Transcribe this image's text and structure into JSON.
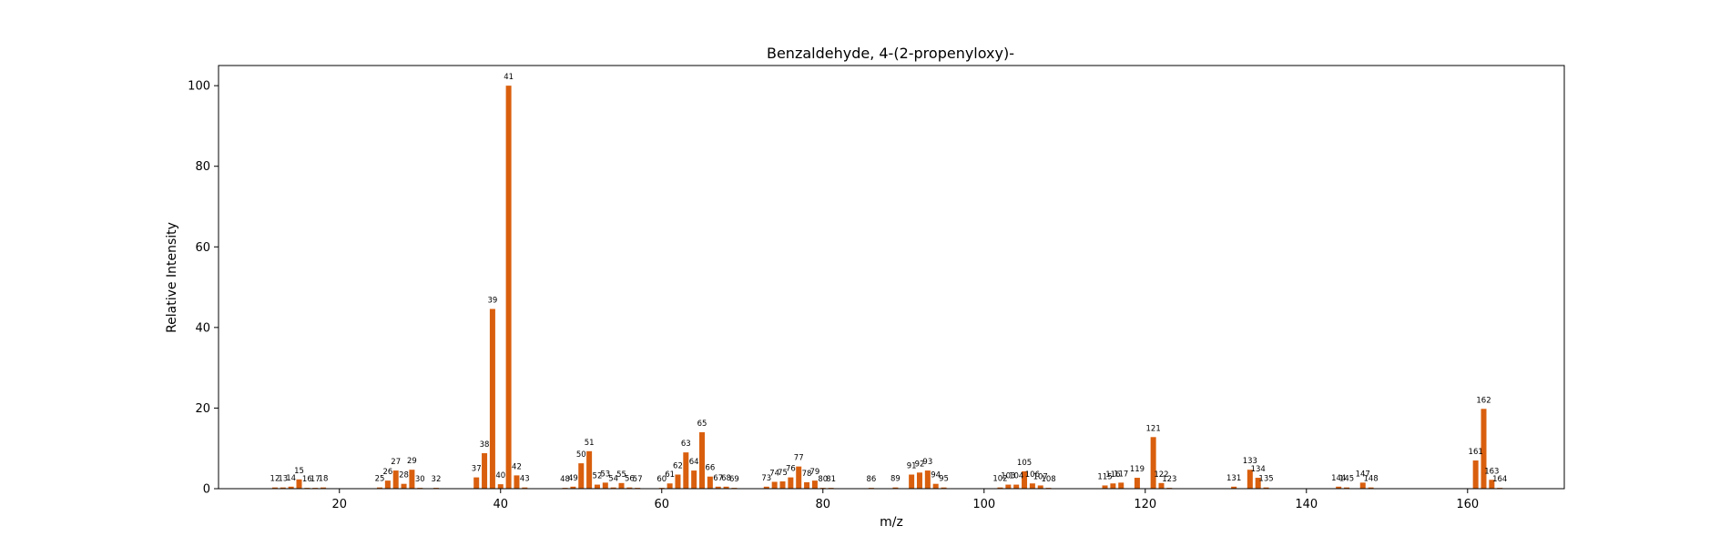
{
  "chart_data": {
    "type": "bar",
    "title": "Benzaldehyde, 4-(2-propenyloxy)-",
    "xlabel": "m/z",
    "ylabel": "Relative Intensity",
    "xlim": [
      5,
      172
    ],
    "ylim": [
      0,
      105
    ],
    "x_ticks": [
      20,
      40,
      60,
      80,
      100,
      120,
      140,
      160
    ],
    "y_ticks": [
      0,
      20,
      40,
      60,
      80,
      100
    ],
    "grid": false,
    "color": "#d95f0e",
    "peaks": [
      {
        "mz": 12,
        "intensity": 0.3
      },
      {
        "mz": 13,
        "intensity": 0.3
      },
      {
        "mz": 14,
        "intensity": 0.5
      },
      {
        "mz": 15,
        "intensity": 2.3
      },
      {
        "mz": 16,
        "intensity": 0.2
      },
      {
        "mz": 17,
        "intensity": 0.2
      },
      {
        "mz": 18,
        "intensity": 0.3
      },
      {
        "mz": 25,
        "intensity": 0.3
      },
      {
        "mz": 26,
        "intensity": 2.0
      },
      {
        "mz": 27,
        "intensity": 4.5
      },
      {
        "mz": 28,
        "intensity": 1.2
      },
      {
        "mz": 29,
        "intensity": 4.7
      },
      {
        "mz": 30,
        "intensity": 0.2
      },
      {
        "mz": 32,
        "intensity": 0.2
      },
      {
        "mz": 37,
        "intensity": 2.8
      },
      {
        "mz": 38,
        "intensity": 8.8
      },
      {
        "mz": 39,
        "intensity": 44.6
      },
      {
        "mz": 40,
        "intensity": 1.1
      },
      {
        "mz": 41,
        "intensity": 100
      },
      {
        "mz": 42,
        "intensity": 3.3
      },
      {
        "mz": 43,
        "intensity": 0.3
      },
      {
        "mz": 48,
        "intensity": 0.2
      },
      {
        "mz": 49,
        "intensity": 0.5
      },
      {
        "mz": 50,
        "intensity": 6.3
      },
      {
        "mz": 51,
        "intensity": 9.3
      },
      {
        "mz": 52,
        "intensity": 1.0
      },
      {
        "mz": 53,
        "intensity": 1.5
      },
      {
        "mz": 54,
        "intensity": 0.3
      },
      {
        "mz": 55,
        "intensity": 1.4
      },
      {
        "mz": 56,
        "intensity": 0.3
      },
      {
        "mz": 57,
        "intensity": 0.2
      },
      {
        "mz": 60,
        "intensity": 0.2
      },
      {
        "mz": 61,
        "intensity": 1.3
      },
      {
        "mz": 62,
        "intensity": 3.5
      },
      {
        "mz": 63,
        "intensity": 9.0
      },
      {
        "mz": 64,
        "intensity": 4.5
      },
      {
        "mz": 65,
        "intensity": 14.0
      },
      {
        "mz": 66,
        "intensity": 3.0
      },
      {
        "mz": 67,
        "intensity": 0.5
      },
      {
        "mz": 68,
        "intensity": 0.5
      },
      {
        "mz": 69,
        "intensity": 0.2
      },
      {
        "mz": 73,
        "intensity": 0.5
      },
      {
        "mz": 74,
        "intensity": 1.7
      },
      {
        "mz": 75,
        "intensity": 1.8
      },
      {
        "mz": 76,
        "intensity": 2.8
      },
      {
        "mz": 77,
        "intensity": 5.5
      },
      {
        "mz": 78,
        "intensity": 1.6
      },
      {
        "mz": 79,
        "intensity": 2.0
      },
      {
        "mz": 80,
        "intensity": 0.2
      },
      {
        "mz": 81,
        "intensity": 0.2
      },
      {
        "mz": 86,
        "intensity": 0.2
      },
      {
        "mz": 89,
        "intensity": 0.3
      },
      {
        "mz": 91,
        "intensity": 3.5
      },
      {
        "mz": 92,
        "intensity": 4.0
      },
      {
        "mz": 93,
        "intensity": 4.5
      },
      {
        "mz": 94,
        "intensity": 1.2
      },
      {
        "mz": 95,
        "intensity": 0.3
      },
      {
        "mz": 102,
        "intensity": 0.3
      },
      {
        "mz": 103,
        "intensity": 1.0
      },
      {
        "mz": 104,
        "intensity": 1.0
      },
      {
        "mz": 105,
        "intensity": 4.3
      },
      {
        "mz": 106,
        "intensity": 1.3
      },
      {
        "mz": 107,
        "intensity": 0.8
      },
      {
        "mz": 108,
        "intensity": 0.2
      },
      {
        "mz": 115,
        "intensity": 0.8
      },
      {
        "mz": 116,
        "intensity": 1.3
      },
      {
        "mz": 117,
        "intensity": 1.5
      },
      {
        "mz": 119,
        "intensity": 2.7
      },
      {
        "mz": 121,
        "intensity": 12.8
      },
      {
        "mz": 122,
        "intensity": 1.4
      },
      {
        "mz": 123,
        "intensity": 0.2
      },
      {
        "mz": 131,
        "intensity": 0.5
      },
      {
        "mz": 133,
        "intensity": 4.7
      },
      {
        "mz": 134,
        "intensity": 2.7
      },
      {
        "mz": 135,
        "intensity": 0.3
      },
      {
        "mz": 144,
        "intensity": 0.5
      },
      {
        "mz": 145,
        "intensity": 0.3
      },
      {
        "mz": 147,
        "intensity": 1.5
      },
      {
        "mz": 148,
        "intensity": 0.3
      },
      {
        "mz": 161,
        "intensity": 7.0
      },
      {
        "mz": 162,
        "intensity": 19.8
      },
      {
        "mz": 163,
        "intensity": 2.2
      },
      {
        "mz": 164,
        "intensity": 0.2
      }
    ]
  }
}
